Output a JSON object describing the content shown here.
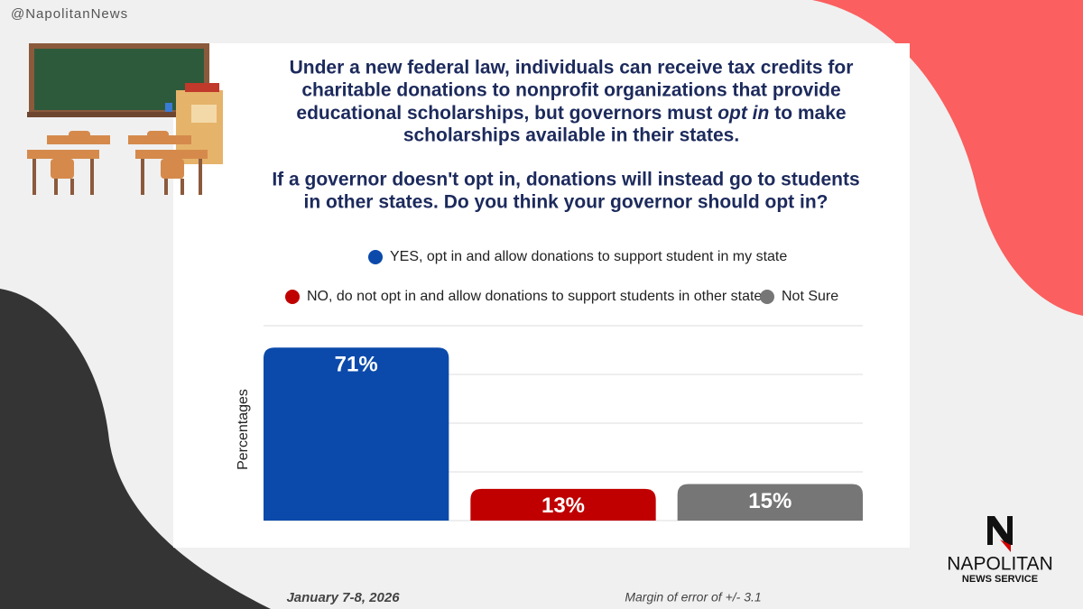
{
  "handle": "@NapolitanNews",
  "chart_data": {
    "type": "bar",
    "question_lines": [
      "Under a new federal law, individuals can receive tax credits for",
      "charitable donations to nonprofit organizations that provide",
      "educational scholarships, but governors must"
    ],
    "question_emphasis": "opt in",
    "question_after": "to make",
    "question_end": "scholarships available in their states.",
    "question2_lines": [
      "If a governor doesn't opt in, donations will instead go to students",
      "in other states. Do you think your governor should opt in?"
    ],
    "ylabel": "Percentages",
    "categories": [
      null
    ],
    "series": [
      {
        "name": "YES, opt in and allow donations to support student in my state",
        "color": "#0b4aab",
        "values": [
          71
        ],
        "value_labels": [
          "71%"
        ]
      },
      {
        "name": "NO, do not opt in and allow donations to support students in other states",
        "color": "#c00000",
        "values": [
          13
        ],
        "value_labels": [
          "13%"
        ]
      },
      {
        "name": "Not Sure",
        "color": "#767676",
        "values": [
          15
        ],
        "value_labels": [
          "15%"
        ]
      }
    ],
    "ylim": [
      0,
      80
    ],
    "yticks": [
      0,
      20,
      40,
      60,
      80
    ],
    "show_ytick_labels": false,
    "grid": true
  },
  "footer": {
    "date": "January 7-8, 2026",
    "margin": "Margin of error of +/- 3.1"
  },
  "logo": {
    "name": "NAPOLITAN",
    "sub": "NEWS SERVICE"
  }
}
